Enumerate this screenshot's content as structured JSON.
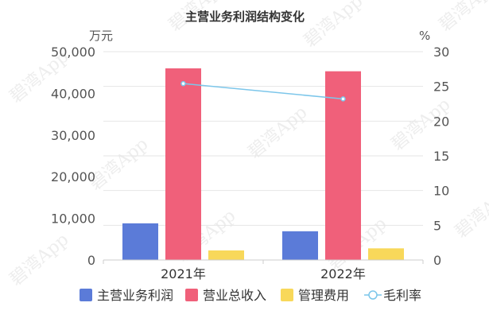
{
  "chart_data": {
    "type": "bar",
    "title": "主营业务利润结构变化",
    "categories": [
      "2021年",
      "2022年"
    ],
    "y_left": {
      "unit": "万元",
      "ylim": [
        0,
        50000
      ],
      "ticks": [
        "0",
        "10,000",
        "20,000",
        "30,000",
        "40,000",
        "50,000"
      ],
      "tick_values": [
        0,
        10000,
        20000,
        30000,
        40000,
        50000
      ]
    },
    "y_right": {
      "unit": "%",
      "ylim": [
        0,
        30
      ],
      "ticks": [
        "0",
        "5",
        "10",
        "15",
        "20",
        "25",
        "30"
      ],
      "tick_values": [
        0,
        5,
        10,
        15,
        20,
        25,
        30
      ]
    },
    "series": [
      {
        "name": "主营业务利润",
        "type": "bar",
        "axis": "left",
        "color": "#5b7bd8",
        "values": [
          8800,
          6900
        ]
      },
      {
        "name": "营业总收入",
        "type": "bar",
        "axis": "left",
        "color": "#f0607a",
        "values": [
          46000,
          45300
        ]
      },
      {
        "name": "管理费用",
        "type": "bar",
        "axis": "left",
        "color": "#f8d85a",
        "values": [
          2300,
          2800
        ]
      },
      {
        "name": "毛利率",
        "type": "line",
        "axis": "right",
        "color": "#7cc6ea",
        "values": [
          25.4,
          23.2
        ]
      }
    ],
    "grid": true,
    "legend_position": "bottom"
  },
  "watermark": "碧湾App"
}
